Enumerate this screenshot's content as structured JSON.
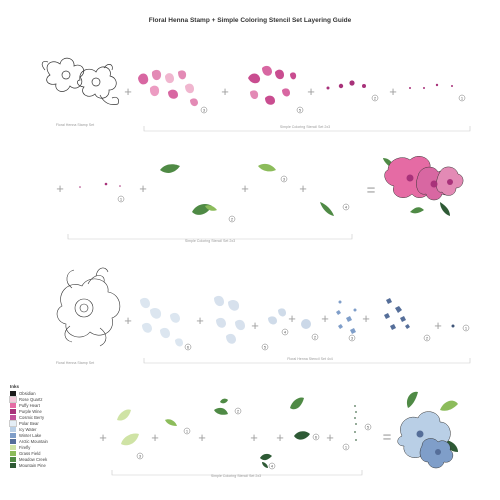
{
  "title": "Floral Henna Stamp + Simple Coloring Stencil Set Layering Guide",
  "captions": {
    "row1_stamp": "Floral Henna Stamp Set",
    "row1_stencils": "Simple Coloring Stencil Set 2x3",
    "row2_stencils": "Simple Coloring Stencil Set 2x3",
    "row3_stamp": "Floral Henna Stamp Set",
    "row3_stencils": "Floral Henna Stencil Set 4x4",
    "row4_stencils": "Simple Coloring Stencil Set 2x3"
  },
  "steps": {
    "row1": [
      "3",
      "5",
      "2",
      "1"
    ],
    "row2": [
      "1",
      "2",
      "3",
      "4"
    ],
    "row3": [
      "6",
      "5",
      "4",
      "2",
      "3",
      "2",
      "1"
    ],
    "row4": [
      "3",
      "1",
      "2",
      "4",
      "6",
      "5",
      "1"
    ]
  },
  "legend": {
    "title": "Inks",
    "items": [
      {
        "label": "Obsidian",
        "color": "#1a1a1a"
      },
      {
        "label": "Rose Quartz",
        "color": "#f3c9da"
      },
      {
        "label": "Puffy Heart",
        "color": "#e56ba4"
      },
      {
        "label": "Purple Wine",
        "color": "#a8327a"
      },
      {
        "label": "Cosmic Berry",
        "color": "#c2529b"
      },
      {
        "label": "Polar Bear",
        "color": "#e4eef6"
      },
      {
        "label": "Icy Water",
        "color": "#b9cfe6"
      },
      {
        "label": "Winter Lake",
        "color": "#7f9ec9"
      },
      {
        "label": "Arctic Mountain",
        "color": "#556e99"
      },
      {
        "label": "Firefly",
        "color": "#cfe3a5"
      },
      {
        "label": "Grass Field",
        "color": "#8cbc5b"
      },
      {
        "label": "Meadow Creek",
        "color": "#4f8a45"
      },
      {
        "label": "Mountain Pine",
        "color": "#2e5a35"
      }
    ]
  }
}
